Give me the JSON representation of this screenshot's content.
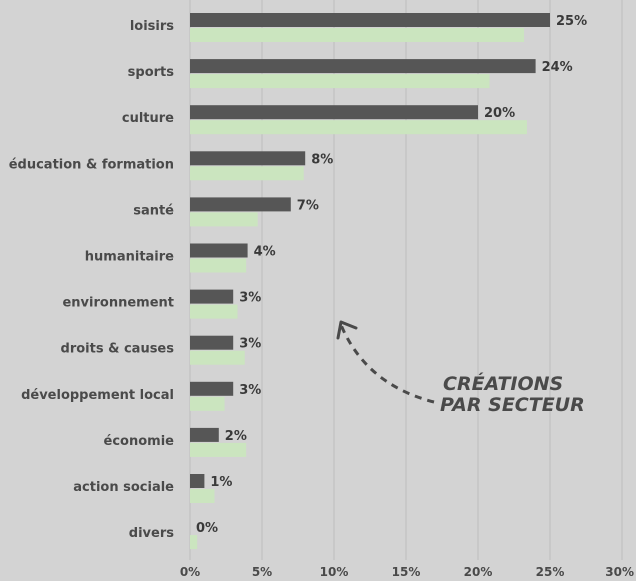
{
  "chart_data": {
    "type": "bar",
    "orientation": "horizontal",
    "categories": [
      "loisirs",
      "sports",
      "culture",
      "éducation & formation",
      "santé",
      "humanitaire",
      "environnement",
      "droits & causes",
      "développement local",
      "économie",
      "action sociale",
      "divers"
    ],
    "series": [
      {
        "color": "#565656",
        "values": [
          25,
          24,
          20,
          8,
          7,
          4,
          3,
          3,
          3,
          2,
          1,
          0
        ],
        "labels": [
          "25%",
          "24%",
          "20%",
          "8%",
          "7%",
          "4%",
          "3%",
          "3%",
          "3%",
          "2%",
          "1%",
          "0%"
        ]
      },
      {
        "color": "#cbe5bf",
        "values": [
          23.2,
          20.8,
          23.4,
          7.9,
          4.7,
          3.9,
          3.3,
          3.8,
          2.4,
          3.9,
          1.7,
          0.5
        ]
      }
    ],
    "xlim": [
      0,
      30
    ],
    "xticks": [
      "0%",
      "5%",
      "10%",
      "15%",
      "20%",
      "25%",
      "30%"
    ],
    "grid": true,
    "annotation": [
      "CRÉATIONS",
      "PAR SECTEUR"
    ]
  },
  "colors": {
    "background": "#d3d3d3",
    "grid": "#bdbdbd",
    "text": "#4a4a4a"
  }
}
